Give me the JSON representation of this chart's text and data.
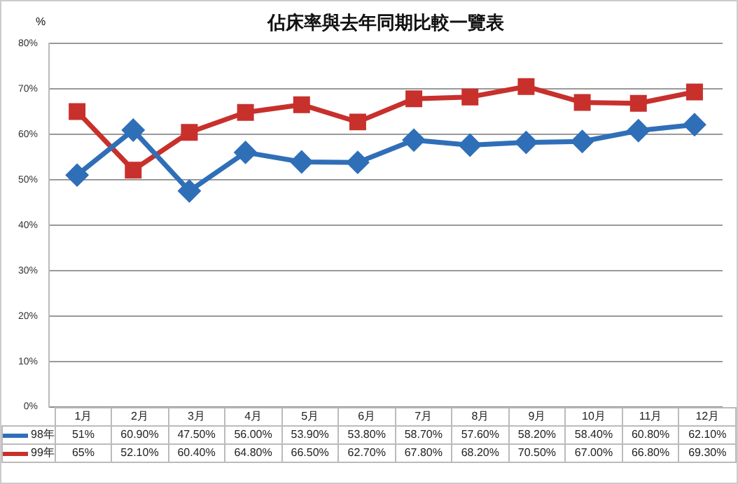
{
  "chart_data": {
    "type": "line",
    "title": "佔床率與去年同期比較一覽表",
    "ylabel": "%",
    "categories": [
      "1月",
      "2月",
      "3月",
      "4月",
      "5月",
      "6月",
      "7月",
      "8月",
      "9月",
      "10月",
      "11月",
      "12月"
    ],
    "series": [
      {
        "name": "98年",
        "color": "#2f6fb8",
        "marker": "diamond",
        "values": [
          51,
          60.9,
          47.5,
          56,
          53.9,
          53.8,
          58.7,
          57.6,
          58.2,
          58.4,
          60.8,
          62.1
        ],
        "value_labels": [
          "51%",
          "60.90%",
          "47.50%",
          "56.00%",
          "53.90%",
          "53.80%",
          "58.70%",
          "57.60%",
          "58.20%",
          "58.40%",
          "60.80%",
          "62.10%"
        ]
      },
      {
        "name": "99年",
        "color": "#c8302c",
        "marker": "square",
        "values": [
          65,
          52.1,
          60.4,
          64.8,
          66.5,
          62.7,
          67.8,
          68.2,
          70.5,
          67,
          66.8,
          69.3
        ],
        "value_labels": [
          "65%",
          "52.10%",
          "60.40%",
          "64.80%",
          "66.50%",
          "62.70%",
          "67.80%",
          "68.20%",
          "70.50%",
          "67.00%",
          "66.80%",
          "69.30%"
        ]
      }
    ],
    "ylim": [
      0,
      80
    ],
    "yticks": [
      {
        "value": 0,
        "label": "0%"
      },
      {
        "value": 10,
        "label": "10%"
      },
      {
        "value": 20,
        "label": "20%"
      },
      {
        "value": 30,
        "label": "30%"
      },
      {
        "value": 40,
        "label": "40%"
      },
      {
        "value": 50,
        "label": "50%"
      },
      {
        "value": 60,
        "label": "60%"
      },
      {
        "value": 70,
        "label": "70%"
      },
      {
        "value": 80,
        "label": "80%"
      }
    ],
    "grid": "y",
    "legend": "bottom",
    "line_style": "solid"
  }
}
